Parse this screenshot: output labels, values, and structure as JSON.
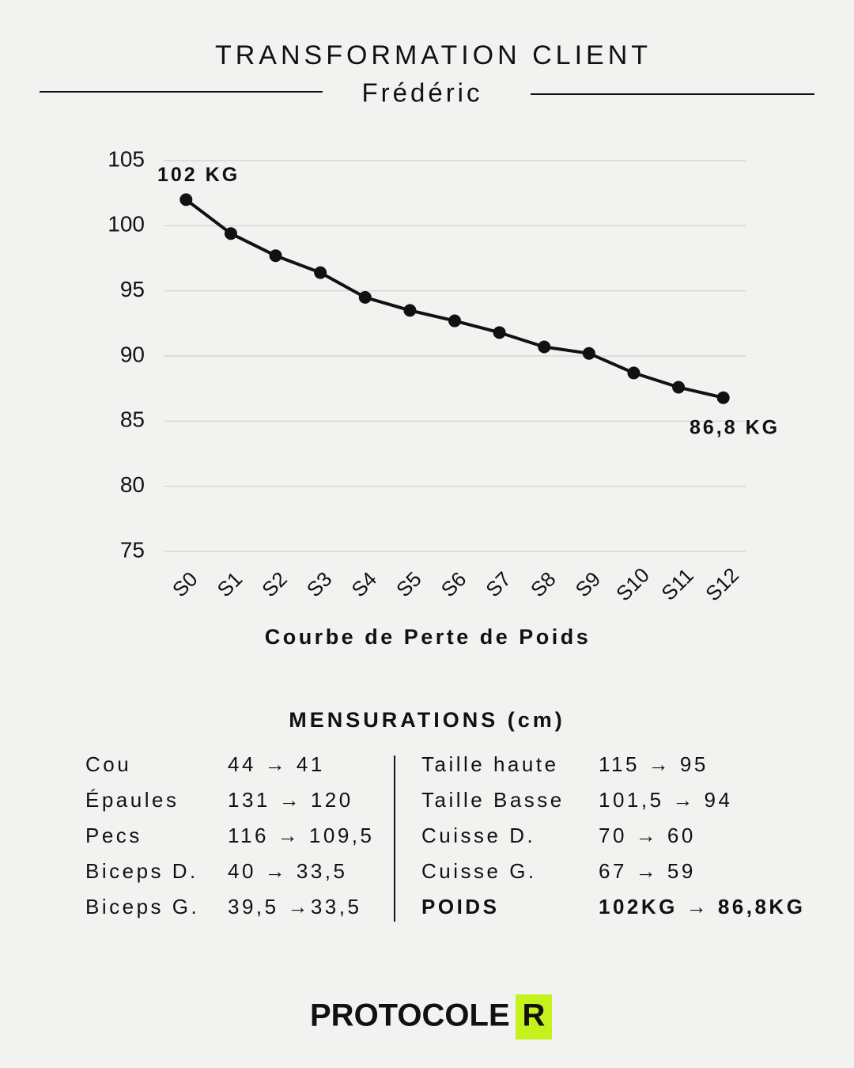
{
  "header": {
    "title": "TRANSFORMATION CLIENT",
    "subtitle": "Frédéric"
  },
  "chart_data": {
    "type": "line",
    "categories": [
      "S0",
      "S1",
      "S2",
      "S3",
      "S4",
      "S5",
      "S6",
      "S7",
      "S8",
      "S9",
      "S10",
      "S11",
      "S12"
    ],
    "values": [
      102,
      99.4,
      97.7,
      96.4,
      94.5,
      93.5,
      92.7,
      91.8,
      90.7,
      90.2,
      88.7,
      87.6,
      86.8
    ],
    "color": "#111111",
    "ylim": [
      75,
      105
    ],
    "yticks": [
      75,
      80,
      85,
      90,
      95,
      100,
      105
    ],
    "grid": true,
    "x_label": "Courbe de Perte de Poids",
    "annotations": [
      {
        "text": "102 KG"
      },
      {
        "text": "86,8 KG"
      }
    ]
  },
  "measurements": {
    "title": "MENSURATIONS (cm)",
    "left": [
      [
        "Cou",
        "44 → 41"
      ],
      [
        "Épaules",
        "131 → 120"
      ],
      [
        "Pecs",
        "116 → 109,5"
      ],
      [
        "Biceps D.",
        "40 → 33,5"
      ],
      [
        "Biceps G.",
        "39,5 →33,5"
      ]
    ],
    "right": [
      [
        "Taille haute",
        "115 → 95"
      ],
      [
        "Taille Basse",
        "101,5 → 94"
      ],
      [
        "Cuisse D.",
        "70 → 60"
      ],
      [
        "Cuisse G.",
        "67 → 59"
      ],
      [
        "POIDS",
        "102KG → 86,8KG"
      ]
    ]
  },
  "brand": {
    "name": "PROTOCOLE",
    "badge": "R"
  }
}
